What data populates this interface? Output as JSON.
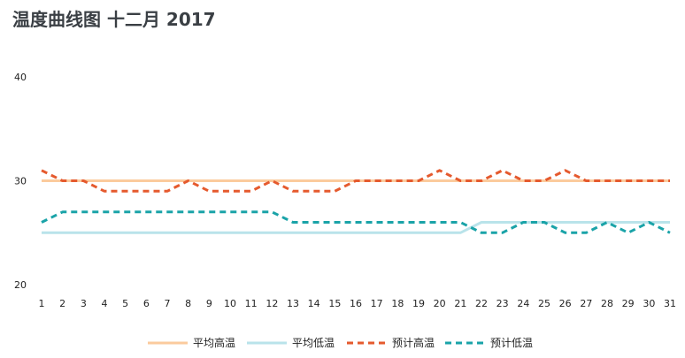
{
  "chart_data": {
    "type": "line",
    "title": "温度曲线图 十二月 2017",
    "x": [
      1,
      2,
      3,
      4,
      5,
      6,
      7,
      8,
      9,
      10,
      11,
      12,
      13,
      14,
      15,
      16,
      17,
      18,
      19,
      20,
      21,
      22,
      23,
      24,
      25,
      26,
      27,
      28,
      29,
      30,
      31
    ],
    "ylim": [
      20,
      40
    ],
    "yticks": [
      20,
      30,
      40
    ],
    "grid": false,
    "legend_position": "bottom",
    "series": [
      {
        "name": "平均高温",
        "color": "#fbcb9d",
        "style": "solid",
        "values": [
          30,
          30,
          30,
          30,
          30,
          30,
          30,
          30,
          30,
          30,
          30,
          30,
          30,
          30,
          30,
          30,
          30,
          30,
          30,
          30,
          30,
          30,
          30,
          30,
          30,
          30,
          30,
          30,
          30,
          30,
          30
        ]
      },
      {
        "name": "平均低温",
        "color": "#b9e3ea",
        "style": "solid",
        "values": [
          25,
          25,
          25,
          25,
          25,
          25,
          25,
          25,
          25,
          25,
          25,
          25,
          25,
          25,
          25,
          25,
          25,
          25,
          25,
          25,
          25,
          26,
          26,
          26,
          26,
          26,
          26,
          26,
          26,
          26,
          26
        ]
      },
      {
        "name": "预计高温",
        "color": "#e55a2e",
        "style": "dashed",
        "values": [
          31,
          30,
          30,
          29,
          29,
          29,
          29,
          30,
          29,
          29,
          29,
          30,
          29,
          29,
          29,
          30,
          30,
          30,
          30,
          31,
          30,
          30,
          31,
          30,
          30,
          31,
          30,
          30,
          30,
          30,
          30
        ]
      },
      {
        "name": "预计低温",
        "color": "#1aa3a8",
        "style": "dashed",
        "values": [
          26,
          27,
          27,
          27,
          27,
          27,
          27,
          27,
          27,
          27,
          27,
          27,
          26,
          26,
          26,
          26,
          26,
          26,
          26,
          26,
          26,
          25,
          25,
          26,
          26,
          25,
          25,
          26,
          25,
          26,
          25
        ]
      }
    ]
  }
}
